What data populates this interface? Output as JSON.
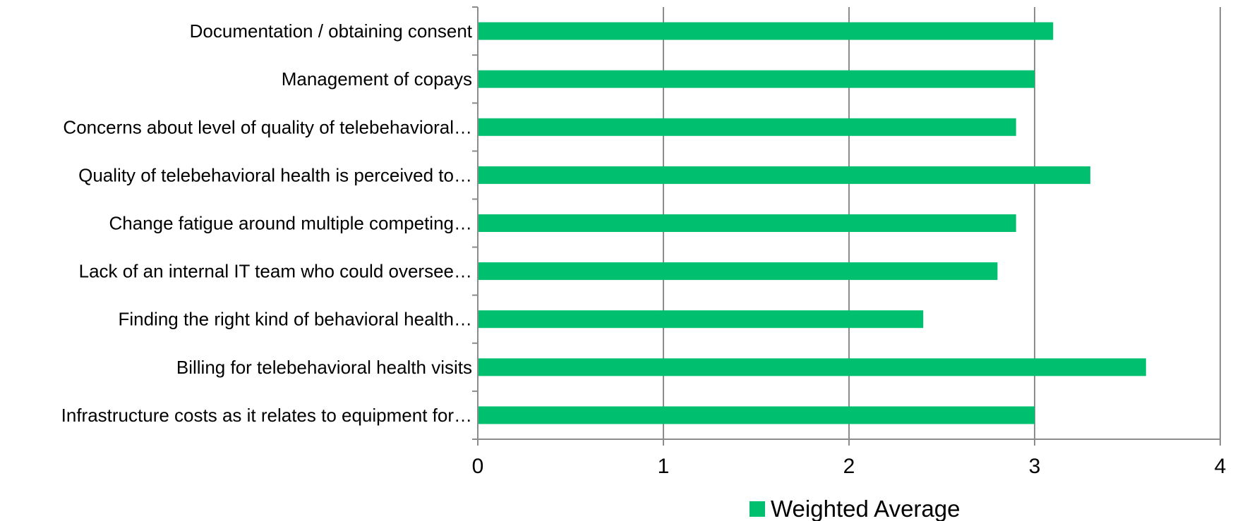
{
  "chart_data": {
    "type": "bar",
    "orientation": "horizontal",
    "categories": [
      "Documentation / obtaining consent",
      "Management of copays",
      "Concerns about level of quality of telebehavioral…",
      "Quality of telebehavioral health is perceived to…",
      "Change fatigue around multiple competing…",
      "Lack of an internal IT team who could oversee…",
      "Finding the right kind of behavioral health…",
      "Billing for telebehavioral health visits",
      "Infrastructure costs as it relates to equipment for…"
    ],
    "series": [
      {
        "name": "Weighted Average",
        "color": "#00c070",
        "values": [
          3.1,
          3.0,
          2.9,
          3.3,
          2.9,
          2.8,
          2.4,
          3.6,
          3.0
        ]
      }
    ],
    "xlim": [
      0,
      4
    ],
    "xticks": [
      "0",
      "1",
      "2",
      "3",
      "4"
    ],
    "grid": "vertical",
    "legend": "bottom"
  }
}
